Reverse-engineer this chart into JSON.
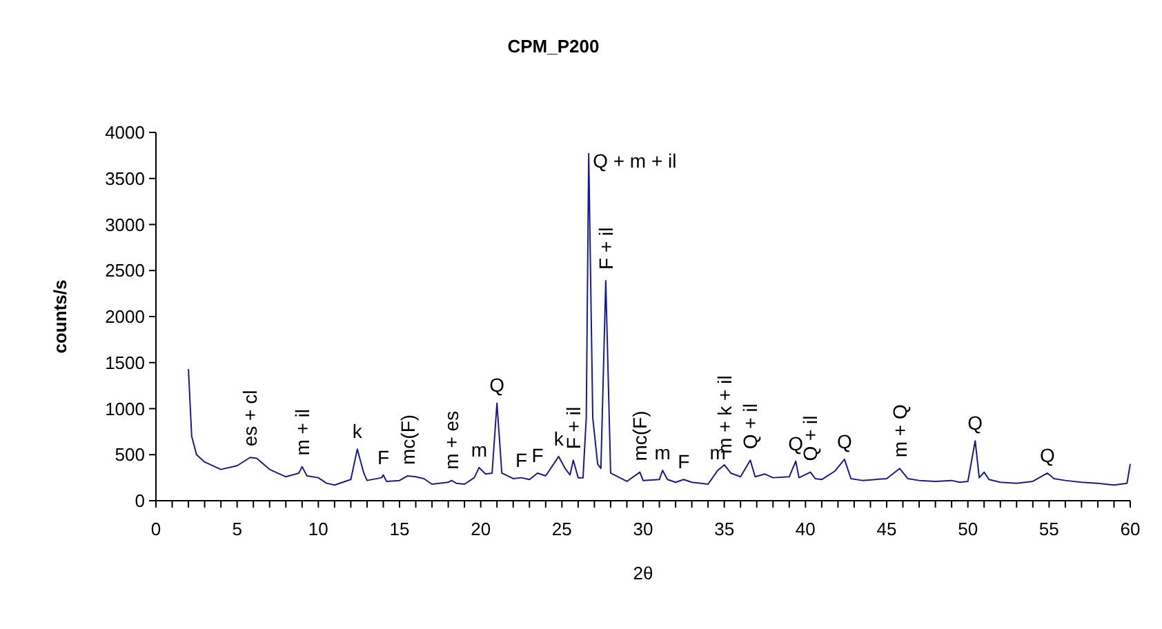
{
  "chart_data": {
    "type": "line",
    "title": "CPM_P200",
    "xlabel": "2θ",
    "ylabel": "counts/s",
    "xlim": [
      0,
      60
    ],
    "ylim": [
      0,
      4000
    ],
    "xticks": [
      0,
      {
        "value": 1,
        "label": null
      },
      {
        "value": 2,
        "label": null
      },
      {
        "value": 3,
        "label": null
      },
      {
        "value": 4,
        "label": null
      },
      5,
      {
        "value": 6,
        "label": null
      },
      {
        "value": 7,
        "label": null
      },
      {
        "value": 8,
        "label": null
      },
      {
        "value": 9,
        "label": null
      },
      10,
      {
        "value": 11,
        "label": null
      },
      {
        "value": 12,
        "label": null
      },
      {
        "value": 13,
        "label": null
      },
      {
        "value": 14,
        "label": null
      },
      15,
      {
        "value": 16,
        "label": null
      },
      {
        "value": 17,
        "label": null
      },
      {
        "value": 18,
        "label": null
      },
      {
        "value": 19,
        "label": null
      },
      20,
      {
        "value": 21,
        "label": null
      },
      {
        "value": 22,
        "label": null
      },
      {
        "value": 23,
        "label": null
      },
      {
        "value": 24,
        "label": null
      },
      25,
      {
        "value": 26,
        "label": null
      },
      {
        "value": 27,
        "label": null
      },
      {
        "value": 28,
        "label": null
      },
      {
        "value": 29,
        "label": null
      },
      30,
      {
        "value": 31,
        "label": null
      },
      {
        "value": 32,
        "label": null
      },
      {
        "value": 33,
        "label": null
      },
      {
        "value": 34,
        "label": null
      },
      35,
      {
        "value": 36,
        "label": null
      },
      {
        "value": 37,
        "label": null
      },
      {
        "value": 38,
        "label": null
      },
      {
        "value": 39,
        "label": null
      },
      40,
      {
        "value": 41,
        "label": null
      },
      {
        "value": 42,
        "label": null
      },
      {
        "value": 43,
        "label": null
      },
      {
        "value": 44,
        "label": null
      },
      45,
      {
        "value": 46,
        "label": null
      },
      {
        "value": 47,
        "label": null
      },
      {
        "value": 48,
        "label": null
      },
      {
        "value": 49,
        "label": null
      },
      50,
      {
        "value": 51,
        "label": null
      },
      {
        "value": 52,
        "label": null
      },
      {
        "value": 53,
        "label": null
      },
      {
        "value": 54,
        "label": null
      },
      55,
      {
        "value": 56,
        "label": null
      },
      {
        "value": 57,
        "label": null
      },
      {
        "value": 58,
        "label": null
      },
      {
        "value": 59,
        "label": null
      },
      60
    ],
    "yticks": [
      0,
      500,
      1000,
      1500,
      2000,
      2500,
      3000,
      3500,
      4000
    ],
    "grid": false,
    "marker": "none",
    "line_style": "solid",
    "x": [
      2,
      2.2,
      2.5,
      3,
      4,
      5,
      5.8,
      6.2,
      7,
      8,
      8.8,
      9,
      9.3,
      10,
      10.5,
      11,
      12,
      12.4,
      12.8,
      13,
      13.9,
      14,
      14.2,
      15,
      15.5,
      16,
      16.5,
      17,
      18,
      18.2,
      18.5,
      19,
      19.6,
      19.9,
      20.3,
      20.7,
      21,
      21.3,
      22,
      22.5,
      23,
      23.5,
      24,
      24.8,
      25.2,
      25.5,
      25.7,
      26,
      26.3,
      26.5,
      26.65,
      26.9,
      27.2,
      27.4,
      27.7,
      28,
      29,
      29.8,
      30,
      31,
      31.2,
      31.5,
      32,
      32.5,
      33,
      34,
      34.6,
      35,
      35.4,
      36,
      36.6,
      36.9,
      37.5,
      38,
      39,
      39.4,
      39.6,
      40.3,
      40.6,
      41,
      41.8,
      42.4,
      42.8,
      43.5,
      45,
      45.8,
      46.3,
      47,
      48,
      49,
      49.5,
      50,
      50.45,
      50.7,
      51,
      51.3,
      52,
      53,
      54,
      54.9,
      55.3,
      56,
      57,
      58,
      59,
      59.8,
      60
    ],
    "series": [
      {
        "color": "#1a1a8c",
        "values": [
          1430,
          700,
          500,
          420,
          340,
          380,
          470,
          460,
          340,
          260,
          300,
          370,
          270,
          250,
          190,
          170,
          230,
          560,
          300,
          220,
          250,
          280,
          210,
          220,
          270,
          260,
          240,
          180,
          200,
          220,
          190,
          180,
          250,
          360,
          290,
          300,
          1060,
          300,
          240,
          250,
          230,
          300,
          270,
          480,
          350,
          280,
          440,
          250,
          250,
          900,
          3770,
          900,
          400,
          350,
          2390,
          300,
          210,
          310,
          220,
          230,
          330,
          230,
          200,
          230,
          200,
          180,
          330,
          390,
          300,
          260,
          440,
          260,
          290,
          250,
          260,
          430,
          250,
          310,
          240,
          230,
          320,
          450,
          240,
          220,
          240,
          350,
          240,
          220,
          210,
          220,
          200,
          210,
          650,
          250,
          310,
          230,
          200,
          190,
          210,
          300,
          240,
          220,
          200,
          190,
          170,
          190,
          400
        ]
      }
    ],
    "annotations": [
      {
        "text": "es + cl",
        "x": 5.8,
        "y": 470
      },
      {
        "text": "m + il",
        "x": 9,
        "y": 370
      },
      {
        "text": "k",
        "x": 12.4,
        "y": 560
      },
      {
        "text": "F",
        "x": 14,
        "y": 280
      },
      {
        "text": "mc(F)",
        "x": 15.5,
        "y": 270
      },
      {
        "text": "m + es",
        "x": 18.2,
        "y": 220
      },
      {
        "text": "m",
        "x": 19.9,
        "y": 360
      },
      {
        "text": "Q",
        "x": 21,
        "y": 1060
      },
      {
        "text": "F",
        "x": 22.5,
        "y": 250
      },
      {
        "text": "F",
        "x": 23.5,
        "y": 300
      },
      {
        "text": "k",
        "x": 24.8,
        "y": 480
      },
      {
        "text": "F + il",
        "x": 25.7,
        "y": 440
      },
      {
        "text": "Q + m + il",
        "x": 26.65,
        "y": 3770
      },
      {
        "text": "F + il",
        "x": 27.7,
        "y": 2390
      },
      {
        "text": "mc(F)",
        "x": 29.8,
        "y": 310
      },
      {
        "text": "m",
        "x": 31.2,
        "y": 330
      },
      {
        "text": "F",
        "x": 32.5,
        "y": 230
      },
      {
        "text": "m",
        "x": 34.6,
        "y": 330
      },
      {
        "text": "m + k + il",
        "x": 35,
        "y": 390
      },
      {
        "text": "Q + il",
        "x": 36.6,
        "y": 440
      },
      {
        "text": "Q",
        "x": 39.4,
        "y": 430
      },
      {
        "text": "Q + il",
        "x": 40.3,
        "y": 310
      },
      {
        "text": "Q",
        "x": 42.4,
        "y": 450
      },
      {
        "text": "m + Q",
        "x": 45.8,
        "y": 350
      },
      {
        "text": "Q",
        "x": 50.45,
        "y": 650
      },
      {
        "text": "Q",
        "x": 54.9,
        "y": 300
      }
    ]
  }
}
